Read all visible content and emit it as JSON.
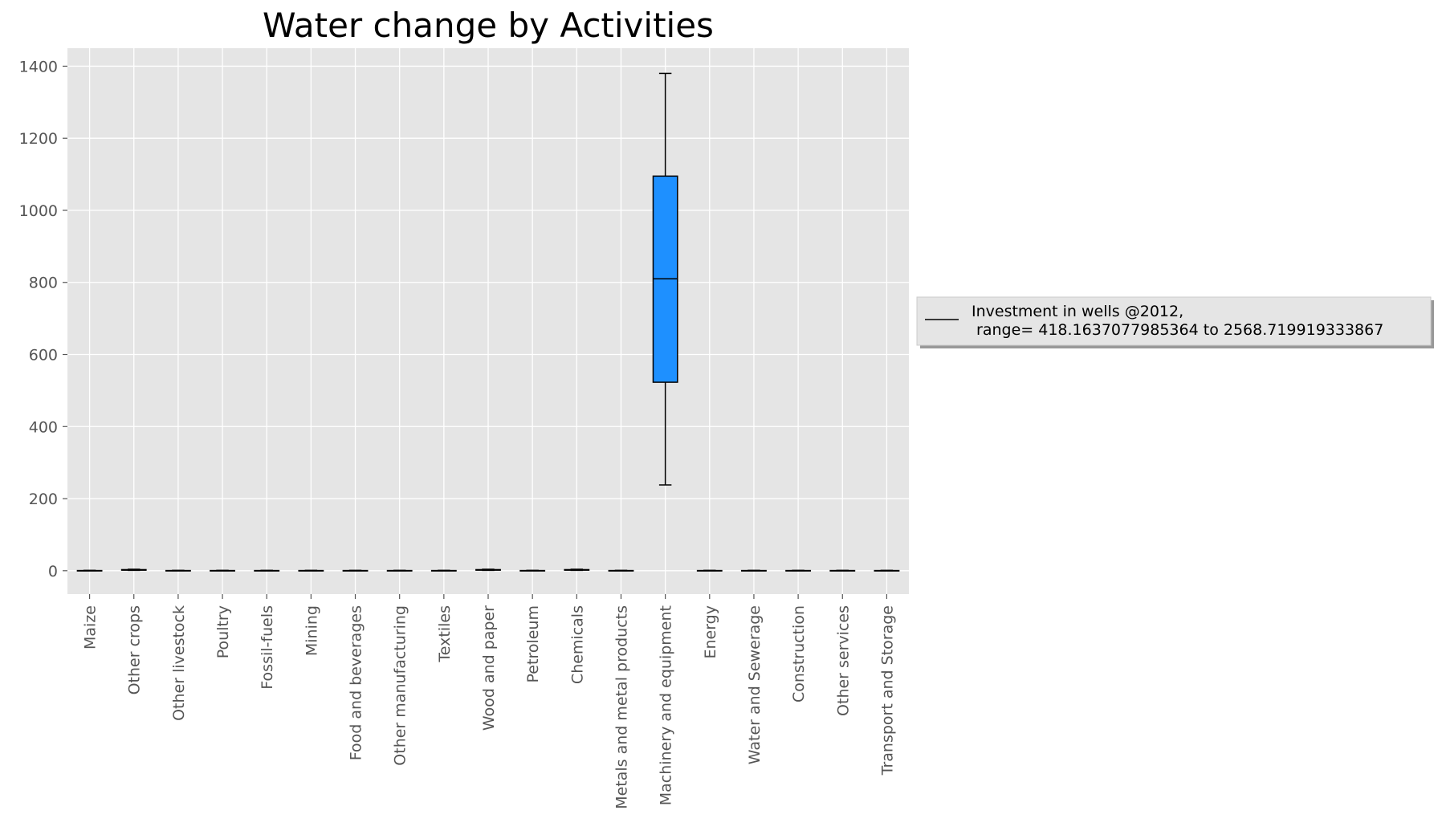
{
  "chart_data": {
    "type": "boxplot",
    "title": "Water change by Activities",
    "xlabel": "",
    "ylabel": "",
    "ylim": [
      -65,
      1450
    ],
    "yticks": [
      0,
      200,
      400,
      600,
      800,
      1000,
      1200,
      1400
    ],
    "grid": true,
    "legend_position": "right",
    "legend": {
      "line1": "Investment in wells @2012,",
      "line2": " range= 418.1637077985364 to 2568.719919333867"
    },
    "colors": {
      "box_fill": "#1e90ff",
      "plot_bg": "#e5e5e5",
      "grid": "#ffffff",
      "line": "#000000"
    },
    "categories": [
      "Maize",
      "Other crops",
      "Other livestock",
      "Poultry",
      "Fossil-fuels",
      "Mining",
      "Food and beverages",
      "Other manufacturing",
      "Textiles",
      "Wood and paper",
      "Petroleum",
      "Chemicals",
      "Metals and metal products",
      "Machinery and equipment",
      "Energy",
      "Water and Sewerage",
      "Construction",
      "Other services",
      "Transport and Storage"
    ],
    "boxes": [
      {
        "min": 0,
        "q1": 0,
        "median": 0,
        "q3": 0.5,
        "max": 1
      },
      {
        "min": 1,
        "q1": 1.5,
        "median": 2,
        "q3": 3,
        "max": 4
      },
      {
        "min": 0,
        "q1": 0,
        "median": 0,
        "q3": 0.5,
        "max": 1
      },
      {
        "min": 0,
        "q1": 0,
        "median": 0,
        "q3": 0.5,
        "max": 1
      },
      {
        "min": 0,
        "q1": 0,
        "median": 0,
        "q3": 0.5,
        "max": 1
      },
      {
        "min": 0,
        "q1": 0,
        "median": 0,
        "q3": 0.5,
        "max": 1
      },
      {
        "min": 0,
        "q1": 0,
        "median": 0,
        "q3": 0.5,
        "max": 1
      },
      {
        "min": 0,
        "q1": 0,
        "median": 0,
        "q3": 0.5,
        "max": 1
      },
      {
        "min": 0,
        "q1": 0,
        "median": 0,
        "q3": 0.5,
        "max": 1
      },
      {
        "min": 1,
        "q1": 1.5,
        "median": 2,
        "q3": 3,
        "max": 4
      },
      {
        "min": 0,
        "q1": 0,
        "median": 0,
        "q3": 0.5,
        "max": 1
      },
      {
        "min": 1,
        "q1": 1.5,
        "median": 2,
        "q3": 3,
        "max": 4
      },
      {
        "min": 0,
        "q1": 0,
        "median": 0,
        "q3": 0.5,
        "max": 1
      },
      {
        "min": 238,
        "q1": 523,
        "median": 810,
        "q3": 1095,
        "max": 1380
      },
      {
        "min": 0,
        "q1": 0,
        "median": 0,
        "q3": 0.5,
        "max": 1
      },
      {
        "min": 0,
        "q1": 0,
        "median": 0,
        "q3": 0.5,
        "max": 1
      },
      {
        "min": 0,
        "q1": 0,
        "median": 0,
        "q3": 0.5,
        "max": 1
      },
      {
        "min": 0,
        "q1": 0,
        "median": 0,
        "q3": 0.5,
        "max": 1
      },
      {
        "min": 0,
        "q1": 0,
        "median": 0,
        "q3": 0.5,
        "max": 1
      }
    ]
  }
}
